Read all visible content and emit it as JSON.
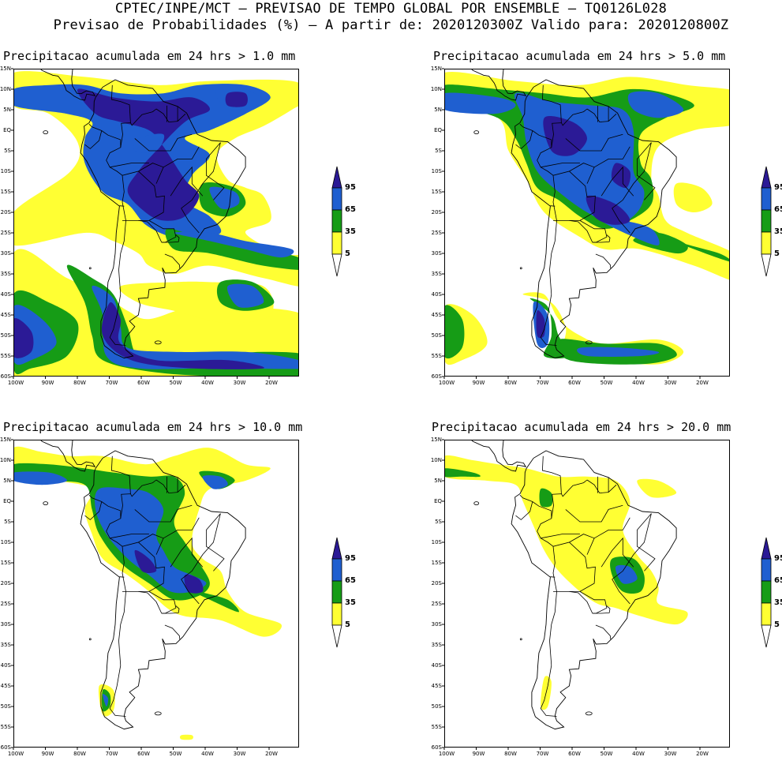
{
  "header": {
    "line1": "CPTEC/INPE/MCT – PREVISAO DE TEMPO GLOBAL POR ENSEMBLE – TQ0126L028",
    "line2": "Previsao de Probabilidades (%) –  A partir de: 2020120300Z  Valido para: 2020120800Z"
  },
  "panels": [
    {
      "title": "Precipitacao acumulada em 24 hrs > 1.0 mm"
    },
    {
      "title": "Precipitacao acumulada em 24 hrs > 5.0 mm"
    },
    {
      "title": "Precipitacao acumulada em 24 hrs > 10.0 mm"
    },
    {
      "title": "Precipitacao acumulada em 24 hrs > 20.0 mm"
    }
  ],
  "lat_labels": [
    "15N",
    "10N",
    "5N",
    "EQ",
    "5S",
    "10S",
    "15S",
    "20S",
    "25S",
    "30S",
    "35S",
    "40S",
    "45S",
    "50S",
    "55S",
    "60S"
  ],
  "lon_labels": [
    "100W",
    "90W",
    "80W",
    "70W",
    "60W",
    "50W",
    "40W",
    "30W",
    "20W"
  ],
  "legend": {
    "labels": [
      "95",
      "65",
      "35",
      "5"
    ],
    "colors": {
      "c95": "#2b1a96",
      "c65": "#1f5fd0",
      "c35": "#169c16",
      "c5": "#ffff33"
    }
  }
}
